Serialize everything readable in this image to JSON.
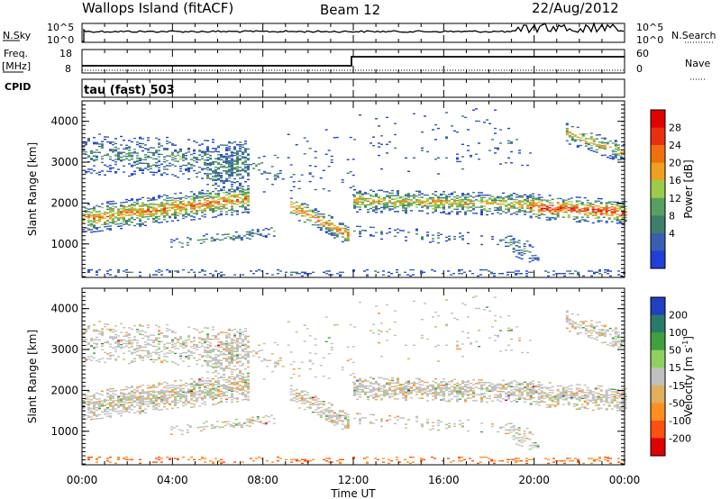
{
  "header": {
    "station": "Wallops Island (fitACF)",
    "beam": "Beam 12",
    "date": "22/Aug/2012"
  },
  "status_panels": {
    "nsky_label": "N.Sky",
    "nsearch_label": "N.Search",
    "noise_ticks": [
      "10^5",
      "10^0"
    ],
    "freq_label": "Freq.",
    "freq_unit": "[MHz]",
    "freq_ticks": [
      "18",
      "8"
    ],
    "nave_label": "Nave",
    "nave_ticks": [
      "60",
      "0"
    ],
    "cpid_label": "CPID",
    "cpid_value": "tau (fast) 503"
  },
  "colors": {
    "power": [
      "#1f3fd8",
      "#3a5fb0",
      "#3f7f6a",
      "#58a060",
      "#9acb4a",
      "#f0a020",
      "#f07010",
      "#e83010",
      "#e00000"
    ],
    "velocity": [
      "#e00000",
      "#ff5010",
      "#ff9020",
      "#e0b060",
      "#c0c0c0",
      "#90d060",
      "#40a040",
      "#2a7a6a",
      "#2040c0"
    ]
  },
  "chart_data": [
    {
      "type": "heatmap",
      "title": "Power",
      "ylabel": "Slant Range [km]",
      "xlabel": "",
      "xlim": [
        "00:00",
        "00:00"
      ],
      "ylim": [
        180,
        4500
      ],
      "yticks": [
        1000,
        2000,
        3000,
        4000
      ],
      "colorbar_label": "Power [dB]",
      "colorbar_ticks": [
        4,
        8,
        12,
        16,
        20,
        24,
        28
      ],
      "x_hours_ticks": [
        "00:00",
        "04:00",
        "08:00",
        "12:00",
        "16:00",
        "20:00",
        "00:00"
      ]
    },
    {
      "type": "heatmap",
      "title": "Velocity",
      "ylabel": "Slant Range [km]",
      "xlabel": "Time UT",
      "xlim": [
        "00:00",
        "00:00"
      ],
      "ylim": [
        180,
        4500
      ],
      "yticks": [
        1000,
        2000,
        3000,
        4000
      ],
      "colorbar_label": "Velocity [m s^-1]",
      "colorbar_ticks": [
        200,
        100,
        50,
        15,
        -15,
        -50,
        -100,
        -200
      ],
      "x_hours_ticks": [
        "00:00",
        "04:00",
        "08:00",
        "12:00",
        "16:00",
        "20:00",
        "00:00"
      ]
    }
  ]
}
